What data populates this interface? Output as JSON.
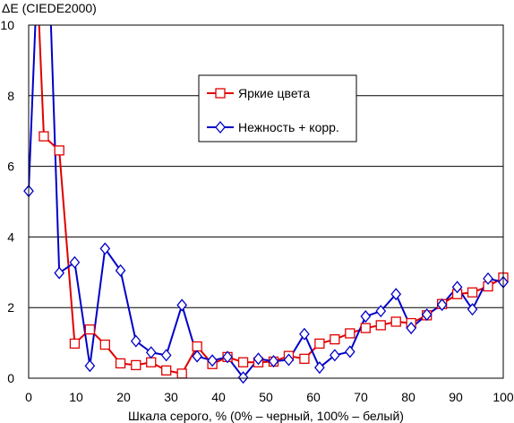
{
  "chart_data": {
    "type": "line",
    "ylabel": "ΔE (CIEDE2000)",
    "xlabel": "Шкала серого, % (0% – черный, 100% – белый)",
    "xlim": [
      0,
      100
    ],
    "ylim": [
      0,
      10
    ],
    "xticks": [
      "0",
      "10",
      "20",
      "30",
      "40",
      "50",
      "60",
      "70",
      "80",
      "90",
      "100"
    ],
    "yticks": [
      "0",
      "2",
      "4",
      "6",
      "8",
      "10"
    ],
    "grid": "horizontal",
    "legend_position": "top-center",
    "series": [
      {
        "name": "Яркие цвета",
        "color": "#e00000",
        "marker": "square",
        "points": [
          [
            0,
            17.0
          ],
          [
            3.2,
            6.85
          ],
          [
            6.45,
            6.45
          ],
          [
            9.7,
            0.98
          ],
          [
            12.9,
            1.38
          ],
          [
            16.1,
            0.95
          ],
          [
            19.35,
            0.42
          ],
          [
            22.6,
            0.37
          ],
          [
            25.8,
            0.45
          ],
          [
            29.0,
            0.22
          ],
          [
            32.3,
            0.13
          ],
          [
            35.5,
            0.9
          ],
          [
            38.7,
            0.4
          ],
          [
            41.9,
            0.6
          ],
          [
            45.2,
            0.45
          ],
          [
            48.4,
            0.45
          ],
          [
            51.6,
            0.47
          ],
          [
            54.8,
            0.63
          ],
          [
            58.1,
            0.55
          ],
          [
            61.3,
            0.98
          ],
          [
            64.5,
            1.1
          ],
          [
            67.7,
            1.27
          ],
          [
            71.0,
            1.42
          ],
          [
            74.2,
            1.5
          ],
          [
            77.4,
            1.6
          ],
          [
            80.6,
            1.56
          ],
          [
            83.9,
            1.78
          ],
          [
            87.1,
            2.1
          ],
          [
            90.3,
            2.38
          ],
          [
            93.5,
            2.43
          ],
          [
            96.8,
            2.6
          ],
          [
            100,
            2.85
          ]
        ]
      },
      {
        "name": "Нежность + корр.",
        "color": "#0000c8",
        "marker": "diamond",
        "points": [
          [
            0,
            5.3
          ],
          [
            3.2,
            16.0
          ],
          [
            6.45,
            2.98
          ],
          [
            9.7,
            3.28
          ],
          [
            12.9,
            0.35
          ],
          [
            16.1,
            3.67
          ],
          [
            19.35,
            3.05
          ],
          [
            22.6,
            1.05
          ],
          [
            25.8,
            0.73
          ],
          [
            29.0,
            0.65
          ],
          [
            32.3,
            2.07
          ],
          [
            35.5,
            0.62
          ],
          [
            38.7,
            0.5
          ],
          [
            41.9,
            0.6
          ],
          [
            45.2,
            0.02
          ],
          [
            48.4,
            0.55
          ],
          [
            51.6,
            0.48
          ],
          [
            54.8,
            0.52
          ],
          [
            58.1,
            1.25
          ],
          [
            61.3,
            0.3
          ],
          [
            64.5,
            0.65
          ],
          [
            67.7,
            0.75
          ],
          [
            71.0,
            1.75
          ],
          [
            74.2,
            1.9
          ],
          [
            77.4,
            2.38
          ],
          [
            80.6,
            1.42
          ],
          [
            83.9,
            1.8
          ],
          [
            87.1,
            2.08
          ],
          [
            90.3,
            2.58
          ],
          [
            93.5,
            1.95
          ],
          [
            96.8,
            2.82
          ],
          [
            100,
            2.72
          ]
        ]
      }
    ]
  }
}
